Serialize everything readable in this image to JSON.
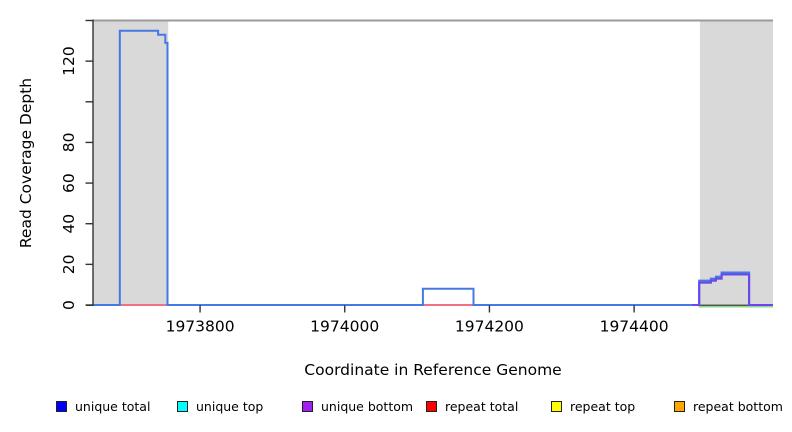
{
  "figure": {
    "background": "#ffffff",
    "band_color": "#d9d9d9",
    "frame_top_color": "#9b9b9b",
    "axis_color": "#333333",
    "text_color": "#000000"
  },
  "chart_data": {
    "type": "line",
    "subtype": "step-coverage",
    "title": "",
    "xlabel": "Coordinate in Reference Genome",
    "ylabel": "Read Coverage Depth",
    "xlim": [
      1973652,
      1974592
    ],
    "ylim": [
      0,
      140
    ],
    "grid": false,
    "x_ticks": [
      {
        "value": 1973800,
        "label": "1973800"
      },
      {
        "value": 1974000,
        "label": "1974000"
      },
      {
        "value": 1974200,
        "label": "1974200"
      },
      {
        "value": 1974400,
        "label": "1974400"
      }
    ],
    "y_ticks": [
      {
        "value": 0,
        "label": "0"
      },
      {
        "value": 20,
        "label": "20"
      },
      {
        "value": 40,
        "label": "40"
      },
      {
        "value": 60,
        "label": "60"
      },
      {
        "value": 80,
        "label": "80"
      },
      {
        "value": 100,
        "label": ""
      },
      {
        "value": 120,
        "label": "120"
      },
      {
        "value": 140,
        "label": ""
      }
    ],
    "shaded_regions": [
      [
        1973652,
        1973756
      ],
      [
        1974491,
        1974592
      ]
    ],
    "series": [
      {
        "name": "unique total",
        "color": "#0000ff",
        "steps": [
          [
            1973652,
            0
          ],
          [
            1973689,
            135
          ],
          [
            1973742,
            133
          ],
          [
            1973752,
            129
          ],
          [
            1973755,
            0
          ],
          [
            1974108,
            8
          ],
          [
            1974178,
            0
          ],
          [
            1974490,
            12
          ],
          [
            1974506,
            13
          ],
          [
            1974513,
            14
          ],
          [
            1974521,
            16
          ],
          [
            1974559,
            0
          ],
          [
            1974592,
            0
          ]
        ]
      },
      {
        "name": "unique top",
        "color": "#00ffff",
        "steps": [
          [
            1973652,
            0
          ],
          [
            1974592,
            0
          ]
        ]
      },
      {
        "name": "unique bottom",
        "color": "#a020f0",
        "steps": [
          [
            1973652,
            0
          ],
          [
            1974490,
            11
          ],
          [
            1974506,
            12
          ],
          [
            1974513,
            13
          ],
          [
            1974521,
            15
          ],
          [
            1974559,
            0
          ],
          [
            1974592,
            0
          ]
        ]
      },
      {
        "name": "repeat total",
        "color": "#ff0000",
        "steps": [
          [
            1973652,
            0
          ],
          [
            1974592,
            0
          ]
        ]
      },
      {
        "name": "repeat top",
        "color": "#ffff00",
        "steps": [
          [
            1973652,
            0
          ],
          [
            1974592,
            0
          ]
        ]
      },
      {
        "name": "repeat bottom",
        "color": "#ffa500",
        "steps": [
          [
            1973652,
            0
          ],
          [
            1974592,
            0
          ]
        ]
      }
    ],
    "render_layers": [
      {
        "series": "unique bottom",
        "draw_color": "#7b6cf2",
        "width": 2,
        "role": "baseline-full"
      },
      {
        "series": "repeat total",
        "draw_color": "#ee7186",
        "width": 2,
        "from": 1973689,
        "to": 1973760,
        "role": "visible-under-left-peak"
      },
      {
        "series": "repeat total",
        "draw_color": "#ee7186",
        "width": 2,
        "from": 1974105,
        "to": 1974185,
        "role": "visible-under-mid-bump"
      },
      {
        "series": "unique top",
        "draw_color": "#8fd78f",
        "width": 1.8,
        "from": 1974489,
        "dy": 1.6,
        "role": "green-overlap-right-band"
      },
      {
        "series": "unique total",
        "draw_color": "#4579e4",
        "width": 2,
        "role": "main-blue-line"
      },
      {
        "series": "unique bottom",
        "draw_color": "#6a46ec",
        "width": 2,
        "from": 1974480,
        "role": "purple-right-bump"
      }
    ],
    "legend_position": "bottom"
  },
  "legend": {
    "items": [
      {
        "label": "unique total",
        "color": "#0000ff"
      },
      {
        "label": "unique top",
        "color": "#00ffff"
      },
      {
        "label": "unique bottom",
        "color": "#a020f0"
      },
      {
        "label": "repeat total",
        "color": "#ff0000"
      },
      {
        "label": "repeat top",
        "color": "#ffff00"
      },
      {
        "label": "repeat bottom",
        "color": "#ffa500"
      }
    ]
  }
}
